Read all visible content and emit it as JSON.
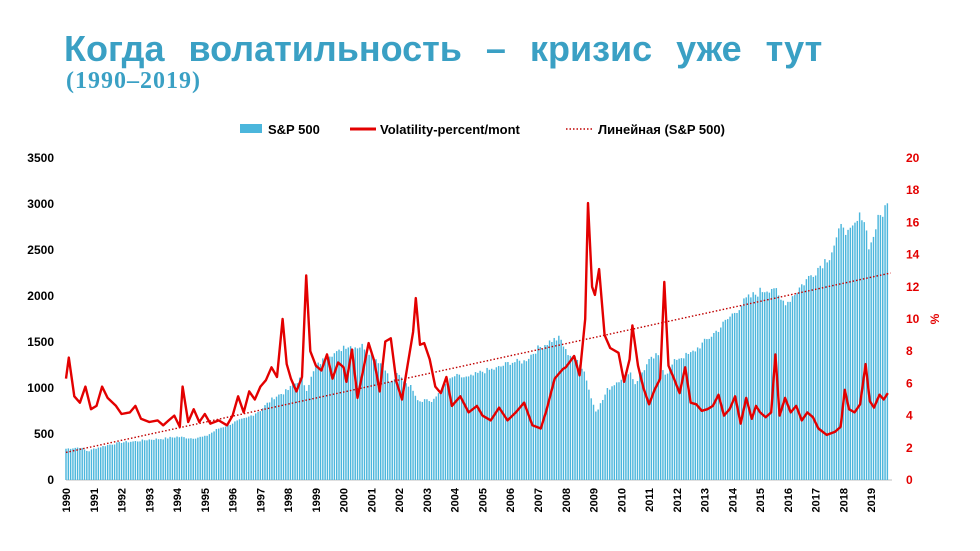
{
  "header": {
    "title": "Когда волатильность – кризис уже тут",
    "subtitle": "(1990–2019)"
  },
  "colors": {
    "title": "#3aa0c4",
    "bars": "#4bb6dc",
    "volatility": "#e30000",
    "trend": "#c00000"
  },
  "chart_data": {
    "type": "bar+line",
    "legend": [
      {
        "label": "S&P 500",
        "kind": "bar"
      },
      {
        "label": "Volatility-percent/mont",
        "kind": "line"
      },
      {
        "label": "Линейная (S&P 500)",
        "kind": "dotted-line"
      }
    ],
    "legend_position": "top-center",
    "x_ticks": [
      "1990",
      "1991",
      "1992",
      "1993",
      "1994",
      "1995",
      "1996",
      "1997",
      "1998",
      "1999",
      "2000",
      "2001",
      "2002",
      "2003",
      "2004",
      "2005",
      "2006",
      "2007",
      "2008",
      "2009",
      "2010",
      "2011",
      "2012",
      "2013",
      "2014",
      "2015",
      "2016",
      "2017",
      "2018",
      "2019"
    ],
    "y_left": {
      "min": 0,
      "max": 3500,
      "ticks": [
        0,
        500,
        1000,
        1500,
        2000,
        2500,
        3000,
        3500
      ]
    },
    "y_right": {
      "min": 0,
      "max": 20,
      "ticks": [
        0,
        2,
        4,
        6,
        8,
        10,
        12,
        14,
        16,
        18,
        20
      ],
      "label": "%"
    },
    "sp500_anchors": [
      [
        1990.0,
        340
      ],
      [
        1990.5,
        355
      ],
      [
        1990.8,
        310
      ],
      [
        1991.0,
        340
      ],
      [
        1991.5,
        380
      ],
      [
        1992.0,
        410
      ],
      [
        1992.5,
        420
      ],
      [
        1993.0,
        440
      ],
      [
        1993.5,
        450
      ],
      [
        1994.0,
        470
      ],
      [
        1994.5,
        455
      ],
      [
        1995.0,
        470
      ],
      [
        1995.5,
        560
      ],
      [
        1996.0,
        620
      ],
      [
        1996.5,
        670
      ],
      [
        1997.0,
        760
      ],
      [
        1997.5,
        900
      ],
      [
        1997.9,
        960
      ],
      [
        1998.0,
        980
      ],
      [
        1998.5,
        1120
      ],
      [
        1998.65,
        980
      ],
      [
        1999.0,
        1230
      ],
      [
        1999.5,
        1370
      ],
      [
        1999.8,
        1380
      ],
      [
        2000.0,
        1460
      ],
      [
        2000.5,
        1450
      ],
      [
        2000.7,
        1460
      ],
      [
        2001.0,
        1370
      ],
      [
        2001.5,
        1220
      ],
      [
        2001.7,
        1040
      ],
      [
        2001.9,
        1140
      ],
      [
        2002.0,
        1130
      ],
      [
        2002.5,
        990
      ],
      [
        2002.7,
        860
      ],
      [
        2003.0,
        880
      ],
      [
        2003.2,
        840
      ],
      [
        2003.5,
        990
      ],
      [
        2004.0,
        1130
      ],
      [
        2004.5,
        1110
      ],
      [
        2005.0,
        1180
      ],
      [
        2005.5,
        1210
      ],
      [
        2006.0,
        1280
      ],
      [
        2006.5,
        1290
      ],
      [
        2007.0,
        1430
      ],
      [
        2007.5,
        1520
      ],
      [
        2007.8,
        1540
      ],
      [
        2008.0,
        1400
      ],
      [
        2008.5,
        1280
      ],
      [
        2008.7,
        1160
      ],
      [
        2008.9,
        900
      ],
      [
        2009.1,
        750
      ],
      [
        2009.3,
        850
      ],
      [
        2009.5,
        980
      ],
      [
        2010.0,
        1110
      ],
      [
        2010.3,
        1190
      ],
      [
        2010.5,
        1050
      ],
      [
        2011.0,
        1290
      ],
      [
        2011.3,
        1360
      ],
      [
        2011.6,
        1150
      ],
      [
        2012.0,
        1320
      ],
      [
        2012.5,
        1370
      ],
      [
        2013.0,
        1500
      ],
      [
        2013.5,
        1640
      ],
      [
        2014.0,
        1800
      ],
      [
        2014.5,
        1960
      ],
      [
        2015.0,
        2050
      ],
      [
        2015.5,
        2100
      ],
      [
        2015.7,
        1950
      ],
      [
        2016.0,
        1940
      ],
      [
        2016.5,
        2120
      ],
      [
        2017.0,
        2280
      ],
      [
        2017.5,
        2440
      ],
      [
        2018.0,
        2790
      ],
      [
        2018.2,
        2650
      ],
      [
        2018.7,
        2910
      ],
      [
        2018.95,
        2510
      ],
      [
        2019.2,
        2790
      ],
      [
        2019.5,
        2960
      ],
      [
        2019.65,
        2990
      ]
    ],
    "volatility_anchors": [
      [
        1990.0,
        6.3
      ],
      [
        1990.1,
        7.6
      ],
      [
        1990.3,
        5.2
      ],
      [
        1990.5,
        4.8
      ],
      [
        1990.7,
        5.8
      ],
      [
        1990.9,
        4.4
      ],
      [
        1991.1,
        4.6
      ],
      [
        1991.3,
        5.8
      ],
      [
        1991.5,
        5.1
      ],
      [
        1991.8,
        4.6
      ],
      [
        1992.0,
        4.1
      ],
      [
        1992.3,
        4.2
      ],
      [
        1992.5,
        4.6
      ],
      [
        1992.7,
        3.8
      ],
      [
        1993.0,
        3.6
      ],
      [
        1993.3,
        3.7
      ],
      [
        1993.5,
        3.4
      ],
      [
        1993.7,
        3.7
      ],
      [
        1993.9,
        4.0
      ],
      [
        1994.1,
        3.3
      ],
      [
        1994.2,
        5.8
      ],
      [
        1994.4,
        3.6
      ],
      [
        1994.6,
        4.4
      ],
      [
        1994.8,
        3.6
      ],
      [
        1995.0,
        4.1
      ],
      [
        1995.2,
        3.5
      ],
      [
        1995.5,
        3.7
      ],
      [
        1995.8,
        3.4
      ],
      [
        1996.0,
        4.0
      ],
      [
        1996.2,
        5.2
      ],
      [
        1996.4,
        4.2
      ],
      [
        1996.6,
        5.5
      ],
      [
        1996.8,
        5.0
      ],
      [
        1997.0,
        5.8
      ],
      [
        1997.2,
        6.2
      ],
      [
        1997.4,
        7.0
      ],
      [
        1997.6,
        6.4
      ],
      [
        1997.8,
        10.0
      ],
      [
        1997.95,
        7.2
      ],
      [
        1998.1,
        6.3
      ],
      [
        1998.3,
        5.5
      ],
      [
        1998.5,
        6.4
      ],
      [
        1998.65,
        12.7
      ],
      [
        1998.8,
        8.0
      ],
      [
        1999.0,
        7.1
      ],
      [
        1999.2,
        6.8
      ],
      [
        1999.4,
        7.8
      ],
      [
        1999.6,
        6.3
      ],
      [
        1999.8,
        7.3
      ],
      [
        2000.0,
        7.0
      ],
      [
        2000.1,
        6.1
      ],
      [
        2000.3,
        8.1
      ],
      [
        2000.5,
        5.1
      ],
      [
        2000.7,
        6.8
      ],
      [
        2000.9,
        8.5
      ],
      [
        2001.1,
        7.4
      ],
      [
        2001.3,
        5.5
      ],
      [
        2001.5,
        8.6
      ],
      [
        2001.7,
        8.8
      ],
      [
        2001.9,
        6.1
      ],
      [
        2002.1,
        5.0
      ],
      [
        2002.3,
        7.1
      ],
      [
        2002.5,
        9.2
      ],
      [
        2002.6,
        11.3
      ],
      [
        2002.75,
        8.4
      ],
      [
        2002.9,
        8.5
      ],
      [
        2003.1,
        7.5
      ],
      [
        2003.3,
        5.8
      ],
      [
        2003.5,
        5.4
      ],
      [
        2003.7,
        6.4
      ],
      [
        2003.9,
        4.6
      ],
      [
        2004.2,
        5.2
      ],
      [
        2004.5,
        4.2
      ],
      [
        2004.8,
        4.6
      ],
      [
        2005.0,
        4.0
      ],
      [
        2005.3,
        3.7
      ],
      [
        2005.6,
        4.5
      ],
      [
        2005.9,
        3.7
      ],
      [
        2006.2,
        4.2
      ],
      [
        2006.5,
        4.8
      ],
      [
        2006.8,
        3.4
      ],
      [
        2007.1,
        3.2
      ],
      [
        2007.3,
        4.3
      ],
      [
        2007.6,
        6.3
      ],
      [
        2007.9,
        6.9
      ],
      [
        2008.0,
        7.0
      ],
      [
        2008.3,
        7.7
      ],
      [
        2008.5,
        6.5
      ],
      [
        2008.7,
        10.0
      ],
      [
        2008.8,
        17.2
      ],
      [
        2008.95,
        12.0
      ],
      [
        2009.05,
        11.5
      ],
      [
        2009.2,
        13.1
      ],
      [
        2009.4,
        9.0
      ],
      [
        2009.6,
        8.2
      ],
      [
        2009.9,
        7.9
      ],
      [
        2010.1,
        6.1
      ],
      [
        2010.3,
        7.5
      ],
      [
        2010.4,
        9.6
      ],
      [
        2010.6,
        7.1
      ],
      [
        2010.8,
        5.7
      ],
      [
        2011.0,
        4.7
      ],
      [
        2011.2,
        5.6
      ],
      [
        2011.4,
        6.3
      ],
      [
        2011.55,
        12.3
      ],
      [
        2011.7,
        7.1
      ],
      [
        2011.9,
        6.3
      ],
      [
        2012.1,
        5.4
      ],
      [
        2012.3,
        7.0
      ],
      [
        2012.5,
        4.8
      ],
      [
        2012.7,
        4.7
      ],
      [
        2012.9,
        4.3
      ],
      [
        2013.1,
        4.4
      ],
      [
        2013.3,
        4.6
      ],
      [
        2013.5,
        5.3
      ],
      [
        2013.7,
        4.0
      ],
      [
        2013.9,
        4.4
      ],
      [
        2014.1,
        5.2
      ],
      [
        2014.3,
        3.5
      ],
      [
        2014.5,
        5.1
      ],
      [
        2014.7,
        3.8
      ],
      [
        2014.85,
        4.6
      ],
      [
        2015.0,
        4.2
      ],
      [
        2015.2,
        3.9
      ],
      [
        2015.4,
        4.2
      ],
      [
        2015.55,
        7.8
      ],
      [
        2015.7,
        4.0
      ],
      [
        2015.9,
        5.1
      ],
      [
        2016.1,
        4.2
      ],
      [
        2016.3,
        4.6
      ],
      [
        2016.5,
        3.7
      ],
      [
        2016.7,
        4.2
      ],
      [
        2016.9,
        3.9
      ],
      [
        2017.1,
        3.2
      ],
      [
        2017.4,
        2.8
      ],
      [
        2017.7,
        3.0
      ],
      [
        2017.9,
        3.3
      ],
      [
        2018.05,
        5.6
      ],
      [
        2018.2,
        4.4
      ],
      [
        2018.4,
        4.2
      ],
      [
        2018.6,
        4.7
      ],
      [
        2018.8,
        7.2
      ],
      [
        2018.95,
        4.9
      ],
      [
        2019.1,
        4.5
      ],
      [
        2019.3,
        5.3
      ],
      [
        2019.45,
        5.0
      ],
      [
        2019.6,
        5.4
      ]
    ],
    "trend": {
      "start": [
        1990.0,
        300
      ],
      "end": [
        2019.7,
        2250
      ]
    }
  }
}
